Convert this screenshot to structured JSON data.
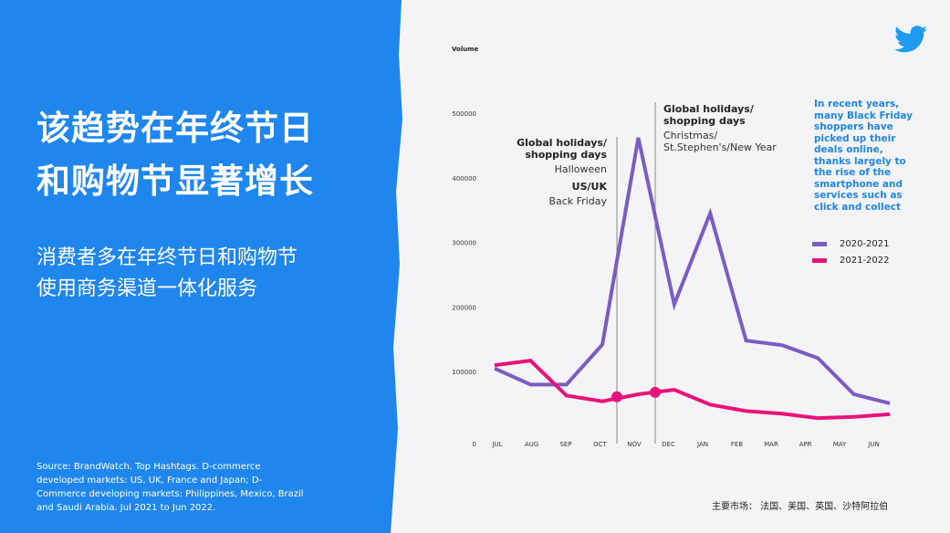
{
  "left_panel": {
    "title_line1": "该趋势在年终节日",
    "title_line2": "和购物节显著增长",
    "subtitle_line1": "消费者多在年终节日和购物节",
    "subtitle_line2": "使用商务渠道一体化服务",
    "source": "Source: BrandWatch. Top Hashtags. D-commerce developed markets: US, UK, France and Japan; D-Commerce developing markets: Philippines, Mexico, Brazil and Saudi Arabia. Jul 2021 to Jun 2022.",
    "background_color": "#1f86ee"
  },
  "logo": "twitter-bird-icon",
  "note": "In recent years, many Black Friday shoppers have picked up their deals online, thanks largely to the rise of the smartphone and services such as click and collect",
  "annotations": {
    "a1_title": "Global holidays/ shopping days",
    "a1_event1": "Halloween",
    "a1_region": "US/UK",
    "a1_event2": "Back Friday",
    "a2_title": "Global holidays/ shopping days",
    "a2_event": "Christmas/ St.Stephen's/New Year"
  },
  "markets": "主要市场： 法国、美国、英国、沙特阿拉伯",
  "chart_data": {
    "type": "line",
    "ylabel": "Volume",
    "ylim": [
      0,
      500000
    ],
    "yticks": [
      "0",
      "100000",
      "200000",
      "300000",
      "400000",
      "500000"
    ],
    "categories": [
      "JUL",
      "AUG",
      "SEP",
      "OCT",
      "NOV",
      "DEC",
      "JAN",
      "FEB",
      "MAR",
      "APR",
      "MAY",
      "JUN"
    ],
    "grid": false,
    "legend_position": "right",
    "series": [
      {
        "name": "2020-2021",
        "color": "#7b5cc0",
        "values": [
          105000,
          80000,
          80000,
          142000,
          462000,
          204000,
          345000,
          148000,
          141000,
          121000,
          65000,
          51000
        ]
      },
      {
        "name": "2021-2022",
        "color": "#e8127a",
        "values": [
          110000,
          117000,
          63000,
          54000,
          65000,
          72000,
          49000,
          39000,
          35000,
          28000,
          30000,
          34000
        ]
      }
    ],
    "markers": [
      {
        "label": "Halloween / Back Friday",
        "position": "between OCT and NOV",
        "value": 61000
      },
      {
        "label": "Christmas / New Year",
        "position": "between NOV and DEC",
        "value": 68000
      }
    ]
  }
}
